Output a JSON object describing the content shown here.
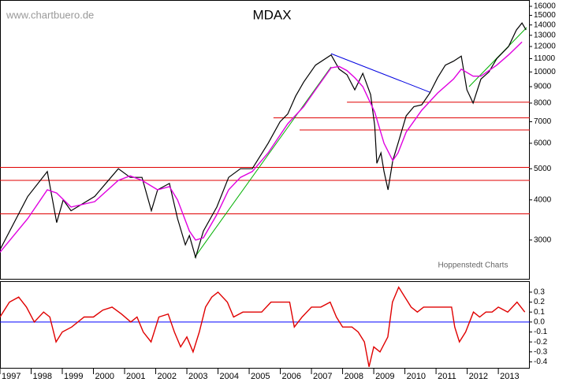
{
  "chart_data": [
    {
      "type": "line",
      "title": "MDAX",
      "watermark": "www.chartbuero.de",
      "source": "Hoppenstedt Charts",
      "log_scale": true,
      "xlim": [
        1997,
        2014.01
      ],
      "ylim": [
        2260,
        16740
      ],
      "yticks": [
        3000,
        4000,
        5000,
        6000,
        7000,
        8000,
        9000,
        10000,
        11000,
        12000,
        13000,
        14000,
        15000,
        16000
      ],
      "series": [
        {
          "color": "#000000",
          "x": [
            1997.0,
            1997.89,
            1998.52,
            1998.82,
            1999.03,
            1999.28,
            2000.04,
            2000.8,
            2001.18,
            2001.56,
            2001.86,
            2002.06,
            2002.44,
            2002.7,
            2002.95,
            2003.08,
            2003.28,
            2003.53,
            2003.96,
            2004.34,
            2004.72,
            2005.1,
            2005.61,
            2005.99,
            2006.24,
            2006.49,
            2006.75,
            2007.13,
            2007.63,
            2007.89,
            2008.14,
            2008.39,
            2008.65,
            2008.9,
            2009.03,
            2009.1,
            2009.23,
            2009.33,
            2009.46,
            2009.61,
            2009.78,
            2010.04,
            2010.29,
            2010.54,
            2010.8,
            2011.05,
            2011.3,
            2011.56,
            2011.81,
            2011.99,
            2012.19,
            2012.44,
            2012.7,
            2012.95,
            2013.33,
            2013.58,
            2013.76,
            2013.89
          ],
          "values": [
            2800,
            4100,
            4900,
            3400,
            4000,
            3700,
            4100,
            5000,
            4700,
            4700,
            3700,
            4300,
            4500,
            3500,
            2900,
            3100,
            2650,
            3200,
            3800,
            4700,
            5000,
            5000,
            6000,
            7000,
            7400,
            8400,
            9300,
            10500,
            11300,
            10200,
            9800,
            8800,
            9900,
            8500,
            6800,
            5200,
            5600,
            4900,
            4300,
            5300,
            6000,
            7300,
            7800,
            7900,
            8600,
            9600,
            10500,
            10800,
            11200,
            8800,
            8000,
            9500,
            10000,
            11000,
            12000,
            13500,
            14200,
            13500
          ]
        },
        {
          "color": "#e000e0",
          "x": [
            1997.0,
            1997.89,
            1998.52,
            1998.82,
            1999.28,
            2000.04,
            2000.8,
            2001.18,
            2001.56,
            2002.06,
            2002.44,
            2002.7,
            2003.08,
            2003.28,
            2003.53,
            2003.96,
            2004.34,
            2004.72,
            2005.1,
            2005.61,
            2006.24,
            2006.75,
            2007.13,
            2007.63,
            2007.89,
            2008.14,
            2008.39,
            2008.65,
            2009.03,
            2009.33,
            2009.61,
            2009.78,
            2010.04,
            2010.54,
            2011.05,
            2011.56,
            2011.81,
            2012.19,
            2012.44,
            2012.95,
            2013.33,
            2013.76
          ],
          "values": [
            2750,
            3500,
            4300,
            4200,
            3800,
            3950,
            4600,
            4750,
            4600,
            4300,
            4400,
            4000,
            3200,
            3000,
            3050,
            3600,
            4300,
            4700,
            4900,
            5600,
            6900,
            7800,
            8800,
            10300,
            10400,
            10100,
            9600,
            9000,
            7500,
            6000,
            5300,
            5600,
            6500,
            7600,
            8600,
            9500,
            10200,
            9700,
            9700,
            10500,
            11300,
            12400
          ]
        }
      ],
      "hlines": [
        {
          "value": 8050,
          "from": 2008.14,
          "color": "#e00000"
        },
        {
          "value": 7200,
          "from": 2005.78,
          "color": "#e00000"
        },
        {
          "value": 6600,
          "from": 2006.62,
          "color": "#e00000"
        },
        {
          "value": 5050,
          "from": 1997,
          "color": "#e00000"
        },
        {
          "value": 4600,
          "from": 1997,
          "color": "#e00000"
        },
        {
          "value": 3620,
          "from": 1997,
          "color": "#e00000"
        }
      ],
      "trendlines": [
        {
          "color": "#00b000",
          "x": [
            2003.25,
            2007.63
          ],
          "y": [
            2650,
            10370
          ]
        },
        {
          "color": "#00b000",
          "x": [
            2012.06,
            2013.91
          ],
          "y": [
            9000,
            13740
          ]
        },
        {
          "color": "#0000e0",
          "x": [
            2007.63,
            2010.8
          ],
          "y": [
            11400,
            8650
          ]
        }
      ]
    },
    {
      "type": "line",
      "xlim": [
        1997,
        2014.01
      ],
      "ylim": [
        -0.46,
        0.41
      ],
      "yticks": [
        0.3,
        0.2,
        0.1,
        {
          "value": 0,
          "label": "0.0"
        },
        -0.1,
        -0.2,
        -0.3,
        -0.4
      ],
      "xticks": [
        1997,
        1998,
        1999,
        2000,
        2001,
        2002,
        2003,
        2004,
        2005,
        2006,
        2007,
        2008,
        2009,
        2010,
        2011,
        2012,
        2013
      ],
      "series": [
        {
          "color": "#e00000",
          "x": [
            1997.0,
            1997.3,
            1997.6,
            1997.85,
            1998.1,
            1998.4,
            1998.6,
            1998.8,
            1999.0,
            1999.3,
            1999.7,
            2000.0,
            2000.3,
            2000.6,
            2000.9,
            2001.2,
            2001.4,
            2001.6,
            2001.85,
            2002.1,
            2002.4,
            2002.6,
            2002.8,
            2003.0,
            2003.2,
            2003.4,
            2003.6,
            2003.8,
            2004.0,
            2004.3,
            2004.5,
            2004.8,
            2005.1,
            2005.4,
            2005.7,
            2006.0,
            2006.3,
            2006.45,
            2006.7,
            2007.0,
            2007.3,
            2007.6,
            2007.8,
            2008.0,
            2008.3,
            2008.5,
            2008.7,
            2008.85,
            2009.0,
            2009.2,
            2009.45,
            2009.6,
            2009.8,
            2010.0,
            2010.2,
            2010.4,
            2010.6,
            2010.8,
            2011.0,
            2011.3,
            2011.5,
            2011.6,
            2011.75,
            2011.95,
            2012.2,
            2012.4,
            2012.6,
            2012.8,
            2013.0,
            2013.3,
            2013.6,
            2013.85
          ],
          "values": [
            0.05,
            0.2,
            0.25,
            0.15,
            0.0,
            0.1,
            0.05,
            -0.2,
            -0.1,
            -0.05,
            0.05,
            0.05,
            0.12,
            0.15,
            0.08,
            0.0,
            0.05,
            -0.1,
            -0.2,
            0.05,
            0.08,
            -0.1,
            -0.25,
            -0.15,
            -0.3,
            -0.1,
            0.15,
            0.25,
            0.3,
            0.2,
            0.05,
            0.1,
            0.1,
            0.1,
            0.2,
            0.2,
            0.2,
            -0.05,
            0.05,
            0.15,
            0.15,
            0.2,
            0.05,
            -0.05,
            -0.05,
            -0.1,
            -0.2,
            -0.45,
            -0.25,
            -0.3,
            -0.15,
            0.2,
            0.35,
            0.25,
            0.15,
            0.1,
            0.15,
            0.15,
            0.15,
            0.15,
            0.15,
            -0.05,
            -0.2,
            -0.1,
            0.1,
            0.05,
            0.1,
            0.1,
            0.15,
            0.1,
            0.2,
            0.1
          ]
        }
      ],
      "hlines": [
        {
          "value": 0,
          "from": 1997,
          "color": "#0000ff"
        }
      ]
    }
  ]
}
